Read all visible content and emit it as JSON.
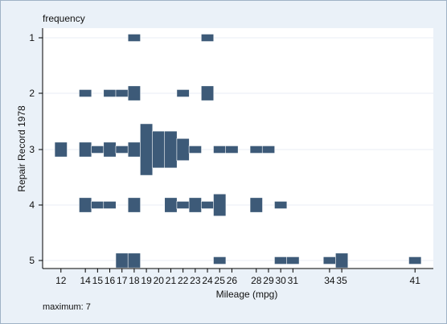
{
  "chart_data": {
    "type": "histogram-strip",
    "title": "frequency",
    "xlabel": "Mileage (mpg)",
    "ylabel": "Repair Record 1978",
    "note": "maximum: 7",
    "xlim": [
      10.5,
      42.5
    ],
    "xticks": [
      12,
      14,
      15,
      16,
      17,
      18,
      19,
      20,
      21,
      22,
      23,
      24,
      25,
      26,
      28,
      29,
      30,
      31,
      34,
      35,
      41
    ],
    "xtick_labels": [
      "12",
      "14",
      "15",
      "16",
      "17",
      "18",
      "19",
      "20",
      "21",
      "22",
      "23",
      "24",
      "25",
      "26",
      "28",
      "29",
      "30",
      "31",
      "34",
      "35",
      "41"
    ],
    "categories": [
      "1",
      "2",
      "3",
      "4",
      "5"
    ],
    "max_count": 7,
    "grid": true,
    "colors": {
      "bar": "#3d5a78",
      "plot_bg": "#ffffff",
      "figure_bg": "#eaf1f8"
    },
    "rows": [
      {
        "name": "1",
        "bins": [
          {
            "x": 18,
            "count": 1
          },
          {
            "x": 24,
            "count": 1
          }
        ]
      },
      {
        "name": "2",
        "bins": [
          {
            "x": 14,
            "count": 1
          },
          {
            "x": 16,
            "count": 1
          },
          {
            "x": 17,
            "count": 1
          },
          {
            "x": 18,
            "count": 2
          },
          {
            "x": 22,
            "count": 1
          },
          {
            "x": 24,
            "count": 2
          }
        ]
      },
      {
        "name": "3",
        "bins": [
          {
            "x": 12,
            "count": 2
          },
          {
            "x": 14,
            "count": 2
          },
          {
            "x": 15,
            "count": 1
          },
          {
            "x": 16,
            "count": 2
          },
          {
            "x": 17,
            "count": 1
          },
          {
            "x": 18,
            "count": 2
          },
          {
            "x": 19,
            "count": 7
          },
          {
            "x": 20,
            "count": 5
          },
          {
            "x": 21,
            "count": 5
          },
          {
            "x": 22,
            "count": 3
          },
          {
            "x": 23,
            "count": 1
          },
          {
            "x": 25,
            "count": 1
          },
          {
            "x": 26,
            "count": 1
          },
          {
            "x": 28,
            "count": 1
          },
          {
            "x": 29,
            "count": 1
          }
        ]
      },
      {
        "name": "4",
        "bins": [
          {
            "x": 14,
            "count": 2
          },
          {
            "x": 15,
            "count": 1
          },
          {
            "x": 16,
            "count": 1
          },
          {
            "x": 18,
            "count": 2
          },
          {
            "x": 21,
            "count": 2
          },
          {
            "x": 22,
            "count": 1
          },
          {
            "x": 23,
            "count": 2
          },
          {
            "x": 24,
            "count": 1
          },
          {
            "x": 25,
            "count": 3
          },
          {
            "x": 28,
            "count": 2
          },
          {
            "x": 30,
            "count": 1
          }
        ]
      },
      {
        "name": "5",
        "bins": [
          {
            "x": 17,
            "count": 2
          },
          {
            "x": 18,
            "count": 2
          },
          {
            "x": 25,
            "count": 1
          },
          {
            "x": 30,
            "count": 1
          },
          {
            "x": 31,
            "count": 1
          },
          {
            "x": 34,
            "count": 1
          },
          {
            "x": 35,
            "count": 2
          },
          {
            "x": 41,
            "count": 1
          }
        ]
      }
    ]
  }
}
